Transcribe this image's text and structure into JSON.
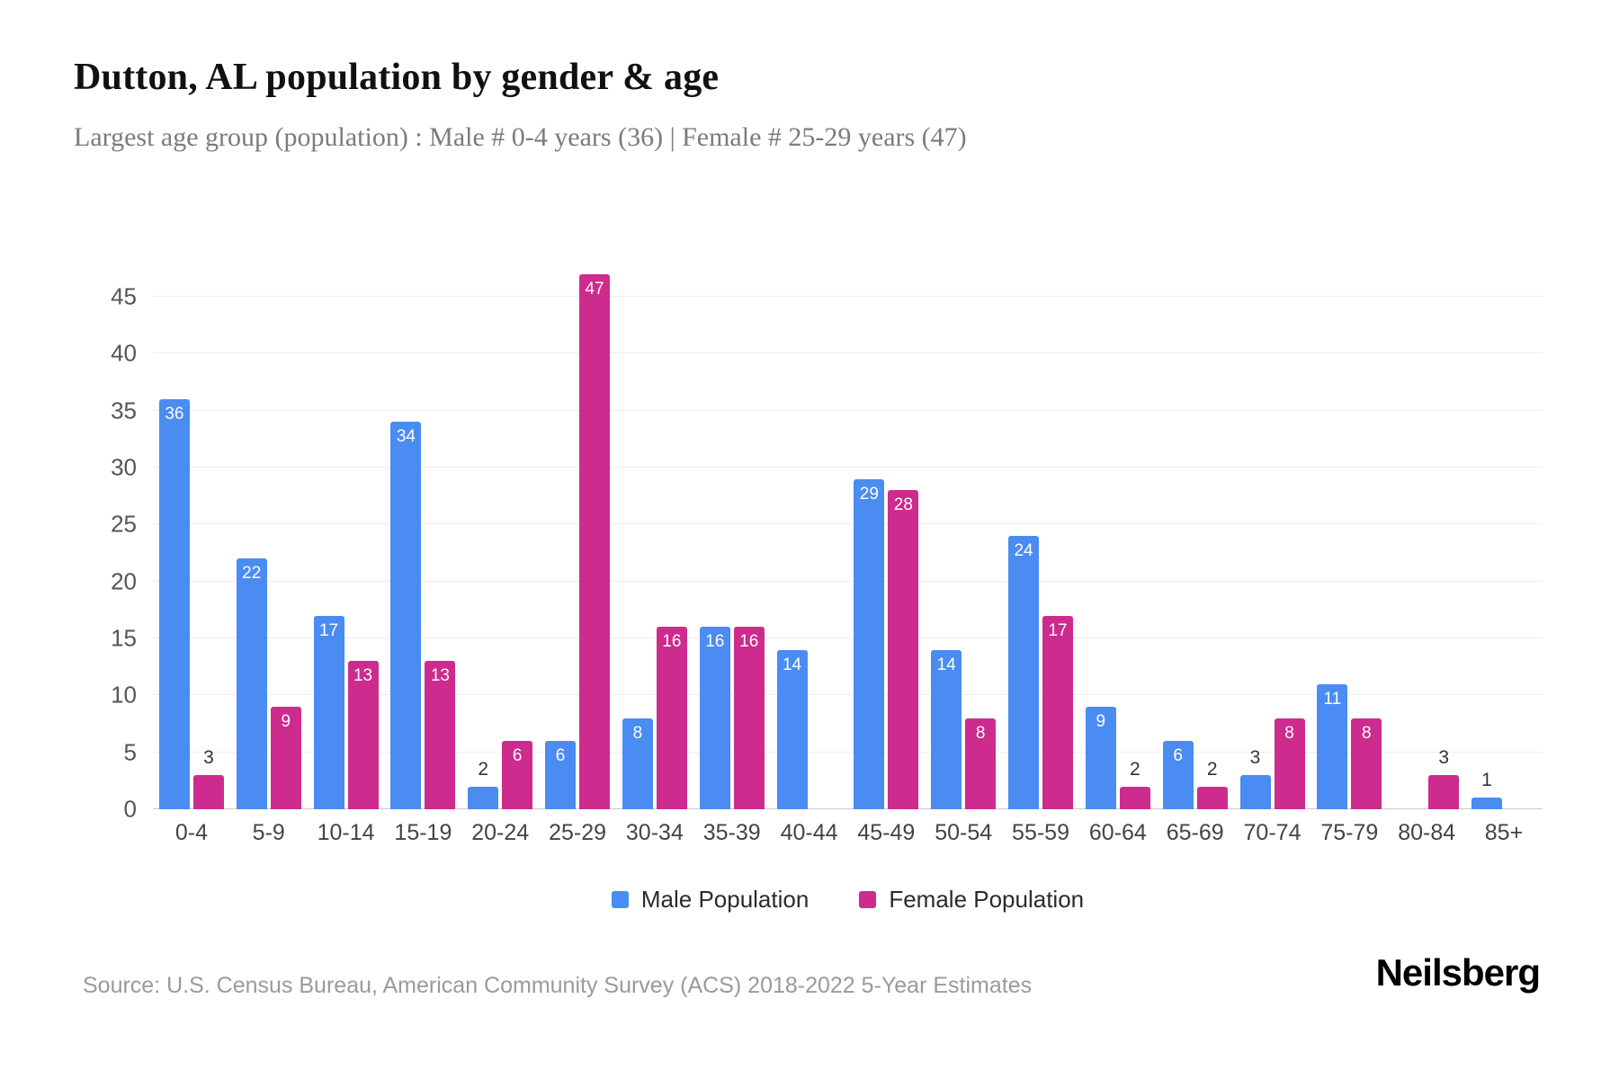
{
  "header": {
    "title": "Dutton, AL population by gender & age",
    "subtitle": "Largest age group (population) : Male # 0-4 years (36) | Female # 25-29 years (47)"
  },
  "chart_data": {
    "type": "bar",
    "title": "Dutton, AL population by gender & age",
    "categories": [
      "0-4",
      "5-9",
      "10-14",
      "15-19",
      "20-24",
      "25-29",
      "30-34",
      "35-39",
      "40-44",
      "45-49",
      "50-54",
      "55-59",
      "60-64",
      "65-69",
      "70-74",
      "75-79",
      "80-84",
      "85+"
    ],
    "series": [
      {
        "name": "Male Population",
        "color": "#4a8cf2",
        "values": [
          36,
          22,
          17,
          34,
          2,
          6,
          8,
          16,
          14,
          29,
          14,
          24,
          9,
          6,
          3,
          11,
          0,
          1
        ]
      },
      {
        "name": "Female Population",
        "color": "#cd2b8e",
        "values": [
          3,
          9,
          13,
          13,
          6,
          47,
          16,
          16,
          0,
          28,
          8,
          17,
          2,
          2,
          8,
          8,
          3,
          0
        ]
      }
    ],
    "yticks": [
      0,
      5,
      10,
      15,
      20,
      25,
      30,
      35,
      40,
      45
    ],
    "ylim": [
      0,
      48
    ],
    "xlabel": "",
    "ylabel": "",
    "grid": true,
    "legend_position": "bottom"
  },
  "footer": {
    "source": "Source: U.S. Census Bureau, American Community Survey (ACS) 2018-2022 5-Year Estimates",
    "logo": "Neilsberg"
  }
}
